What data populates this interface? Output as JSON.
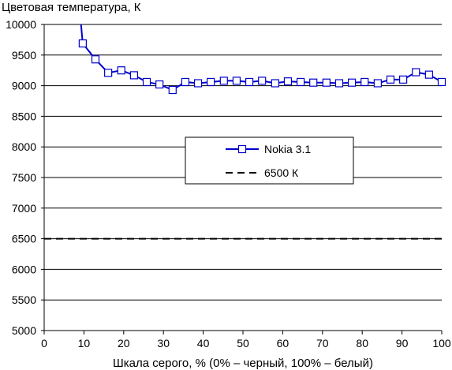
{
  "chart_data": {
    "type": "line",
    "title": "",
    "ylabel": "Цветовая температура, К",
    "xlabel": "Шкала серого, % (0% – черный, 100% – белый)",
    "xlim": [
      0,
      100
    ],
    "ylim": [
      5000,
      10000
    ],
    "x_ticks": [
      "0",
      "10",
      "20",
      "30",
      "40",
      "50",
      "60",
      "70",
      "80",
      "90",
      "100"
    ],
    "y_ticks": [
      "5000",
      "5500",
      "6000",
      "6500",
      "7000",
      "7500",
      "8000",
      "8500",
      "9000",
      "9500",
      "10000"
    ],
    "grid": "horizontal",
    "legend_position": "center-right",
    "series": [
      {
        "name": "Nokia 3.1",
        "color": "#0000cc",
        "style": "solid",
        "marker": "open-square",
        "x": [
          9.2,
          9.7,
          12.9,
          16.1,
          19.4,
          22.6,
          25.8,
          29.0,
          32.3,
          35.5,
          38.7,
          41.9,
          45.2,
          48.4,
          51.6,
          54.8,
          58.1,
          61.3,
          64.5,
          67.7,
          71.0,
          74.2,
          77.4,
          80.6,
          83.9,
          87.1,
          90.3,
          93.5,
          96.8,
          100
        ],
        "y": [
          10050,
          9690,
          9430,
          9210,
          9250,
          9170,
          9060,
          9020,
          8930,
          9060,
          9040,
          9060,
          9080,
          9080,
          9060,
          9080,
          9040,
          9070,
          9060,
          9050,
          9050,
          9040,
          9050,
          9060,
          9040,
          9100,
          9100,
          9220,
          9180,
          9060
        ]
      },
      {
        "name": "6500 К",
        "color": "#000000",
        "style": "dashed",
        "marker": "none",
        "x": [
          0,
          100
        ],
        "y": [
          6500,
          6500
        ]
      }
    ]
  }
}
